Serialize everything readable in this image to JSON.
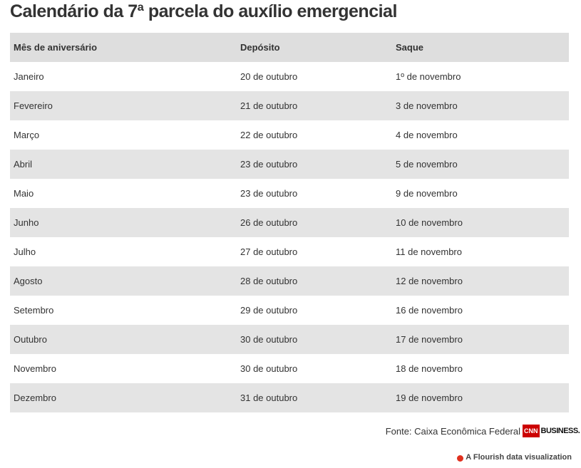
{
  "title": "Calendário da 7ª parcela do auxílio emergencial",
  "table": {
    "header": [
      "Mês de aniversário",
      "Depósito",
      "Saque"
    ],
    "rows": [
      [
        "Janeiro",
        "20 de outubro",
        "1º de novembro"
      ],
      [
        "Fevereiro",
        "21 de outubro",
        "3 de novembro"
      ],
      [
        "Março",
        "22 de outubro",
        "4 de novembro"
      ],
      [
        "Abril",
        "23 de outubro",
        "5 de novembro"
      ],
      [
        "Maio",
        "23 de outubro",
        "9 de novembro"
      ],
      [
        "Junho",
        "26 de outubro",
        "10 de novembro"
      ],
      [
        "Julho",
        "27 de outubro",
        "11 de novembro"
      ],
      [
        "Agosto",
        "28 de outubro",
        "12 de novembro"
      ],
      [
        "Setembro",
        "29 de outubro",
        "16 de novembro"
      ],
      [
        "Outubro",
        "30 de outubro",
        "17 de novembro"
      ],
      [
        "Novembro",
        "30 de outubro",
        "18 de novembro"
      ],
      [
        "Dezembro",
        "31 de outubro",
        "19 de novembro"
      ]
    ]
  },
  "source": "Fonte: Caixa Econômica Federal",
  "logo": {
    "cnn": "CNN",
    "business": "BUSINESS."
  },
  "credit": "A Flourish data visualization"
}
